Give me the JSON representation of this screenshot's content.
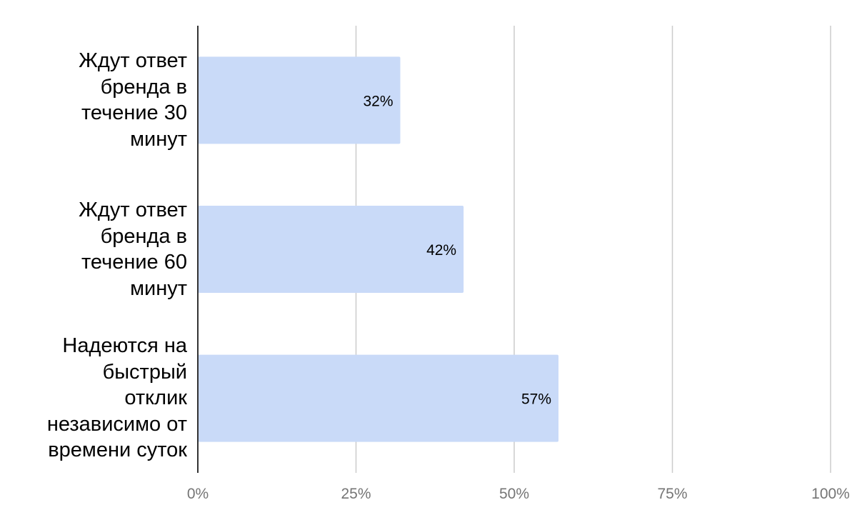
{
  "chart_data": {
    "type": "bar",
    "orientation": "horizontal",
    "categories": [
      "Ждут ответ бренда в течение 30 минут",
      "Ждут ответ бренда в течение 60 минут",
      "Надеются на быстрый отклик независимо от времени суток"
    ],
    "category_lines": [
      [
        "Ждут ответ",
        "бренда в",
        "течение 30",
        "минут"
      ],
      [
        "Ждут ответ",
        "бренда в",
        "течение 60",
        "минут"
      ],
      [
        "Надеются на",
        "быстрый",
        "отклик",
        "независимо от",
        "времени суток"
      ]
    ],
    "values": [
      32,
      42,
      57
    ],
    "value_labels": [
      "32%",
      "42%",
      "57%"
    ],
    "xlim": [
      0,
      100
    ],
    "x_ticks": [
      0,
      25,
      50,
      75,
      100
    ],
    "x_tick_labels": [
      "0%",
      "25%",
      "50%",
      "75%",
      "100%"
    ],
    "grid": true,
    "legend": "none",
    "colors": {
      "bar": "#c9daf8",
      "grid": "#cccccc",
      "axis": "#333333",
      "tick_text": "#757575",
      "label_text": "#000000"
    }
  }
}
